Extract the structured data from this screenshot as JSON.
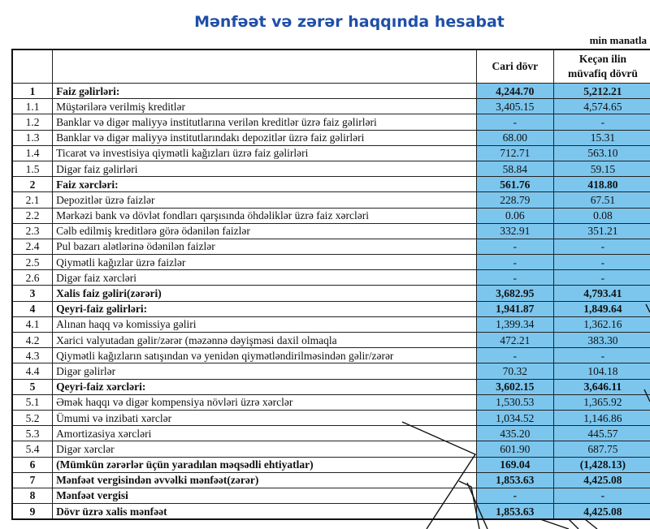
{
  "title": "Mənfəət və zərər haqqında hesabat",
  "unit": "min manatla",
  "columns": {
    "current": "Cari dövr",
    "previous_line1": "Keçən ilin",
    "previous_line2": "müvafiq dövrü"
  },
  "accent_color": "#7cc6ee",
  "rows": [
    {
      "no": "1",
      "label": "Faiz gəlirləri:",
      "current": "4,244.70",
      "previous": "5,212.21",
      "bold": true
    },
    {
      "no": "1.1",
      "label": "Müştərilərə verilmiş kreditlər",
      "current": "3,405.15",
      "previous": "4,574.65"
    },
    {
      "no": "1.2",
      "label": "Banklar və digər maliyyə institutlarına verilən kreditlər üzrə faiz gəlirləri",
      "current": "-",
      "previous": "-"
    },
    {
      "no": "1.3",
      "label": "Banklar və digər maliyyə institutlarındakı depozitlər üzrə faiz gəlirləri",
      "current": "68.00",
      "previous": "15.31"
    },
    {
      "no": "1.4",
      "label": "Ticarət və investisiya qiymətli kağızları üzrə faiz gəlirləri",
      "current": "712.71",
      "previous": "563.10"
    },
    {
      "no": "1.5",
      "label": "Digər faiz gəlirləri",
      "current": "58.84",
      "previous": "59.15"
    },
    {
      "no": "2",
      "label": "Faiz xərcləri:",
      "current": "561.76",
      "previous": "418.80",
      "bold": true
    },
    {
      "no": "2.1",
      "label": "Depozitlər üzrə faizlər",
      "current": "228.79",
      "previous": "67.51"
    },
    {
      "no": "2.2",
      "label": "Mərkəzi bank və dövlət fondları qarşısında öhdəliklər üzrə faiz xərcləri",
      "current": "0.06",
      "previous": "0.08"
    },
    {
      "no": "2.3",
      "label": "Cəlb edilmiş kreditlərə görə ödənilən faizlər",
      "current": "332.91",
      "previous": "351.21"
    },
    {
      "no": "2.4",
      "label": "Pul bazarı alətlərinə ödənilən faizlər",
      "current": "-",
      "previous": "-"
    },
    {
      "no": "2.5",
      "label": "Qiymətli kağızlar üzrə faizlər",
      "current": "-",
      "previous": "-"
    },
    {
      "no": "2.6",
      "label": "Digər faiz xərcləri",
      "current": "-",
      "previous": "-"
    },
    {
      "no": "3",
      "label": "Xalis faiz gəliri(zərəri)",
      "current": "3,682.95",
      "previous": "4,793.41",
      "bold": true
    },
    {
      "no": "4",
      "label": "Qeyri-faiz gəlirləri:",
      "current": "1,941.87",
      "previous": "1,849.64",
      "bold": true
    },
    {
      "no": "4.1",
      "label": "Alınan haqq və komissiya gəliri",
      "current": "1,399.34",
      "previous": "1,362.16"
    },
    {
      "no": "4.2",
      "label": "Xarici valyutadan gəlir/zərər (məzənnə dəyişməsi daxil olmaqla",
      "current": "472.21",
      "previous": "383.30"
    },
    {
      "no": "4.3",
      "label": "Qiymətli kağızların satışından və yenidən qiymətləndirilməsindən gəlir/zərər",
      "current": "-",
      "previous": "-"
    },
    {
      "no": "4.4",
      "label": "Digər gəlirlər",
      "current": "70.32",
      "previous": "104.18"
    },
    {
      "no": "5",
      "label": "Qeyri-faiz xərcləri:",
      "current": "3,602.15",
      "previous": "3,646.11",
      "bold": true
    },
    {
      "no": "5.1",
      "label": "Əmək haqqı və digər kompensiya növləri üzrə xərclər",
      "current": "1,530.53",
      "previous": "1,365.92"
    },
    {
      "no": "5.2",
      "label": "Ümumi və inzibati xərclər",
      "current": "1,034.52",
      "previous": "1,146.86"
    },
    {
      "no": "5.3",
      "label": "Amortizasiya xərcləri",
      "current": "435.20",
      "previous": "445.57"
    },
    {
      "no": "5.4",
      "label": "Digər xərclər",
      "current": "601.90",
      "previous": "687.75"
    },
    {
      "no": "6",
      "label": "(Mümkün zərərlər üçün yaradılan məqsədli ehtiyatlar)",
      "current": "169.04",
      "previous": "(1,428.13)",
      "bold": true
    },
    {
      "no": "7",
      "label": "Mənfəət vergisindən əvvəlki mənfəət(zərər)",
      "current": "1,853.63",
      "previous": "4,425.08",
      "bold": true
    },
    {
      "no": "8",
      "label": "Mənfəət vergisi",
      "current": "-",
      "previous": "-",
      "bold": true
    },
    {
      "no": "9",
      "label": "Dövr üzrə xalis mənfəət",
      "current": "1,853.63",
      "previous": "4,425.08",
      "bold": true
    }
  ]
}
